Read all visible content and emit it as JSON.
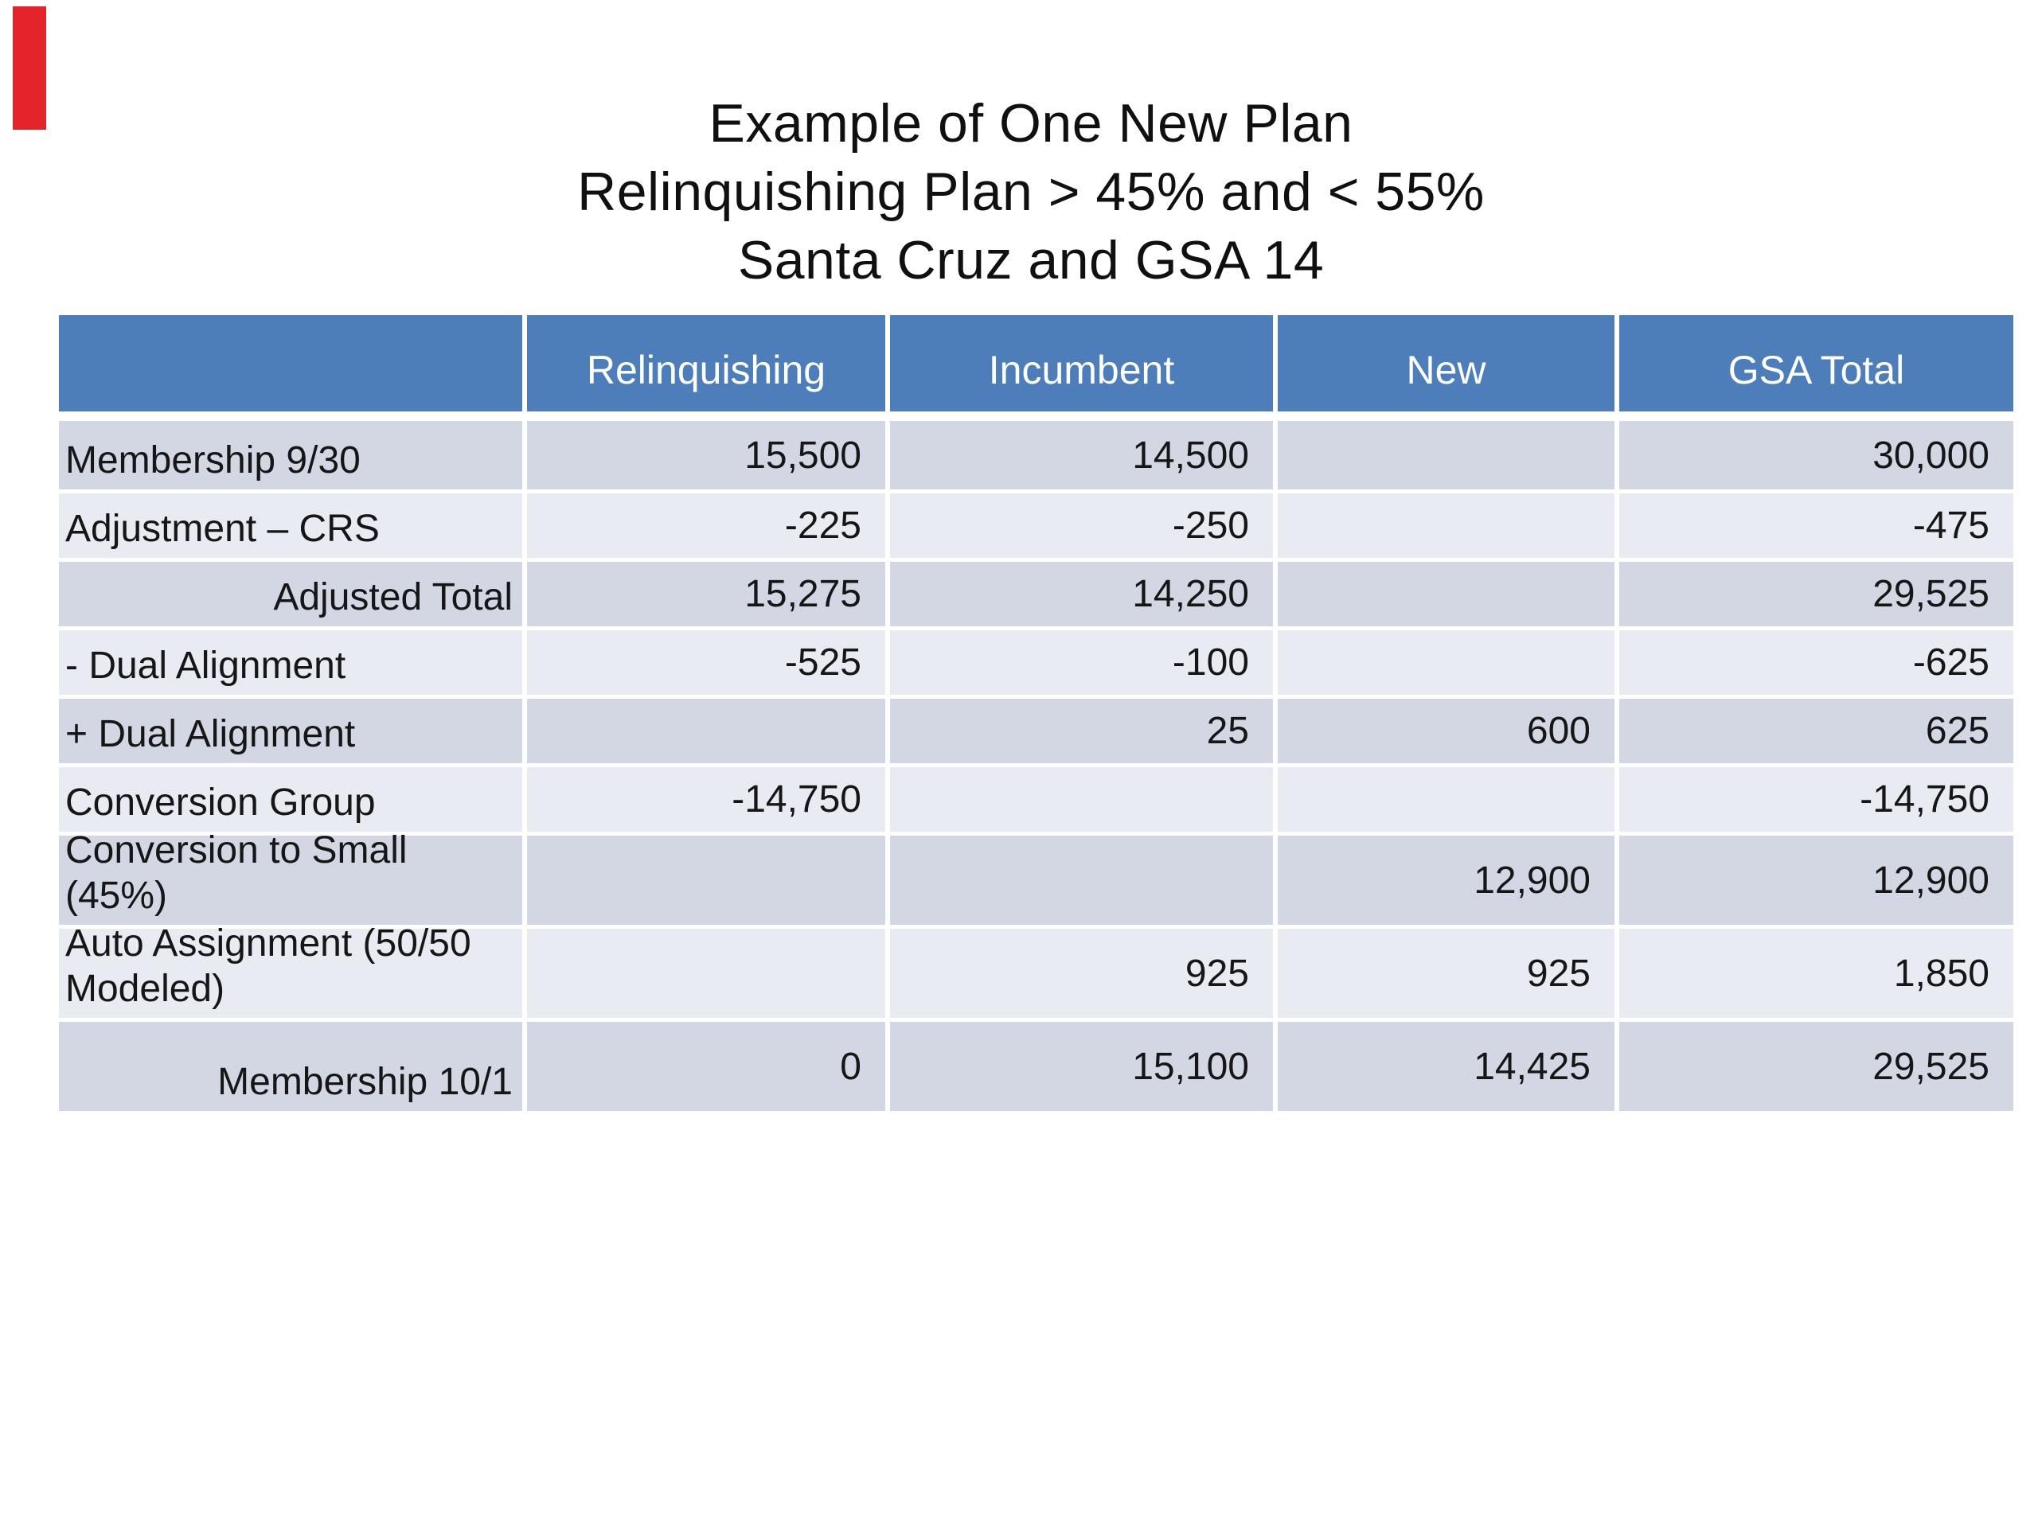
{
  "slide": {
    "title_lines": [
      "Example of One New Plan",
      "Relinquishing Plan > 45% and < 55%",
      "Santa Cruz and GSA 14"
    ]
  },
  "colors": {
    "header_bg": "#4D7EBA",
    "band_dark": "#D2D7E3",
    "band_light": "#E9EBF3",
    "header_text": "#FFFFFF",
    "body_text": "#161616",
    "red_marker": "#E4232B"
  },
  "chart_data": {
    "type": "table",
    "title": "Example of One New Plan — Relinquishing Plan > 45% and < 55% — Santa Cruz and GSA 14",
    "columns": [
      "",
      "Relinquishing",
      "Incumbent",
      "New",
      "GSA Total"
    ],
    "rows": [
      {
        "label": "Membership 9/30",
        "align": "left",
        "values": [
          "15,500",
          "14,500",
          "",
          "30,000"
        ]
      },
      {
        "label": "Adjustment – CRS",
        "align": "left",
        "values": [
          "-225",
          "-250",
          "",
          "-475"
        ]
      },
      {
        "label": "Adjusted Total",
        "align": "right",
        "values": [
          "15,275",
          "14,250",
          "",
          "29,525"
        ]
      },
      {
        "label": "- Dual Alignment",
        "align": "left",
        "values": [
          "-525",
          "-100",
          "",
          "-625"
        ]
      },
      {
        "label": "+ Dual Alignment",
        "align": "left",
        "values": [
          "",
          "25",
          "600",
          "625"
        ]
      },
      {
        "label": "Conversion Group",
        "align": "left",
        "values": [
          "-14,750",
          "",
          "",
          "-14,750"
        ]
      },
      {
        "label": "Conversion to Small\n(45%)",
        "align": "left",
        "values": [
          "",
          "",
          "12,900",
          "12,900"
        ]
      },
      {
        "label": "Auto Assignment (50/50\nModeled)",
        "align": "left",
        "values": [
          "",
          "925",
          "925",
          "1,850"
        ]
      },
      {
        "label": "Membership 10/1",
        "align": "right",
        "values": [
          "0",
          "15,100",
          "14,425",
          "29,525"
        ]
      }
    ]
  }
}
